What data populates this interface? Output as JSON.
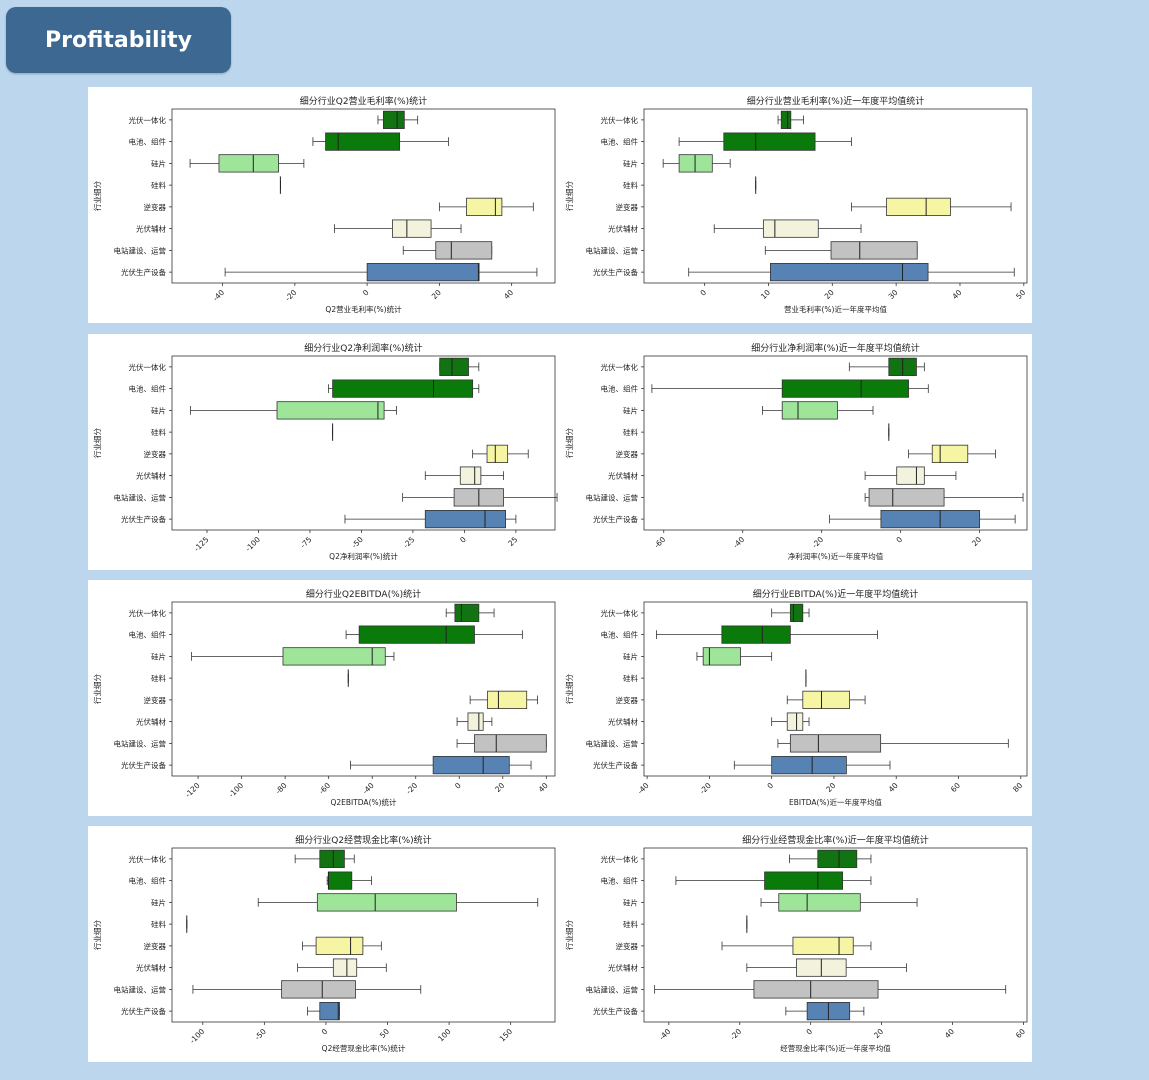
{
  "header": {
    "title": "Profitability"
  },
  "colors": {
    "光伏一体化": "#117311",
    "电池、组件": "#0a7a0a",
    "硅片": "#9ee59a",
    "硅料": "#888888",
    "逆变器": "#f5f5a4",
    "光伏辅材": "#f2f2dd",
    "电站建设、运营": "#c2c2c2",
    "光伏生产设备": "#5683b4"
  },
  "chart_data": [
    {
      "type": "box",
      "title": "细分行业Q2营业毛利率(%)统计",
      "xlabel": "Q2营业毛利率(%)统计",
      "ylabel": "行业细分",
      "categories": [
        "光伏一体化",
        "电池、组件",
        "硅片",
        "硅料",
        "逆变器",
        "光伏辅材",
        "电站建设、运营",
        "光伏生产设备"
      ],
      "xlim": [
        -54,
        52
      ],
      "ticks": [
        -40,
        -20,
        0,
        20,
        40
      ],
      "boxes": [
        {
          "min": 3,
          "q1": 4.5,
          "median": 8.3,
          "q3": 10.3,
          "max": 14
        },
        {
          "min": -15,
          "q1": -11.5,
          "median": -8,
          "q3": 9,
          "max": 22.5
        },
        {
          "min": -49,
          "q1": -41,
          "median": -31.5,
          "q3": -24.5,
          "max": -17.5
        },
        {
          "min": -24,
          "q1": -24,
          "median": -24,
          "q3": -24,
          "max": -24
        },
        {
          "min": 20,
          "q1": 27.5,
          "median": 35.5,
          "q3": 37.3,
          "max": 46
        },
        {
          "min": -9,
          "q1": 7,
          "median": 11,
          "q3": 17.7,
          "max": 26
        },
        {
          "min": 10,
          "q1": 19,
          "median": 23.3,
          "q3": 34.5,
          "max": 34.5
        },
        {
          "min": -39.3,
          "q1": 0,
          "median": 30.8,
          "q3": 31,
          "max": 47
        }
      ]
    },
    {
      "type": "box",
      "title": "细分行业营业毛利率(%)近一年度平均值统计",
      "xlabel": "营业毛利率(%)近一年度平均值",
      "ylabel": "行业细分",
      "categories": [
        "光伏一体化",
        "电池、组件",
        "硅片",
        "硅料",
        "逆变器",
        "光伏辅材",
        "电站建设、运营",
        "光伏生产设备"
      ],
      "xlim": [
        -9.5,
        50.5
      ],
      "ticks": [
        0,
        10,
        20,
        30,
        40,
        50
      ],
      "boxes": [
        {
          "min": 11.5,
          "q1": 12,
          "median": 13,
          "q3": 13.5,
          "max": 15.5
        },
        {
          "min": -4,
          "q1": 3,
          "median": 8,
          "q3": 17.3,
          "max": 23
        },
        {
          "min": -6.5,
          "q1": -4,
          "median": -1.5,
          "q3": 1.2,
          "max": 4
        },
        {
          "min": 8,
          "q1": 8,
          "median": 8,
          "q3": 8,
          "max": 8
        },
        {
          "min": 23,
          "q1": 28.5,
          "median": 34.7,
          "q3": 38.5,
          "max": 48
        },
        {
          "min": 1.5,
          "q1": 9.2,
          "median": 11,
          "q3": 17.8,
          "max": 24.5
        },
        {
          "min": 9.5,
          "q1": 19.8,
          "median": 24.3,
          "q3": 33.3,
          "max": 33.3
        },
        {
          "min": -2.5,
          "q1": 10.3,
          "median": 31,
          "q3": 35,
          "max": 48.5
        }
      ]
    },
    {
      "type": "box",
      "title": "细分行业Q2净利润率(%)统计",
      "xlabel": "Q2净利润率(%)统计",
      "ylabel": "行业细分",
      "categories": [
        "光伏一体化",
        "电池、组件",
        "硅片",
        "硅料",
        "逆变器",
        "光伏辅材",
        "电站建设、运营",
        "光伏生产设备"
      ],
      "xlim": [
        -142,
        44
      ],
      "ticks": [
        -125,
        -100,
        -75,
        -50,
        -25,
        0,
        25
      ],
      "boxes": [
        {
          "min": -12,
          "q1": -12,
          "median": -6,
          "q3": 2,
          "max": 7
        },
        {
          "min": -66,
          "q1": -64,
          "median": -15,
          "q3": 4,
          "max": 7
        },
        {
          "min": -133,
          "q1": -91,
          "median": -42,
          "q3": -39,
          "max": -33
        },
        {
          "min": -64,
          "q1": -64,
          "median": -64,
          "q3": -64,
          "max": -64
        },
        {
          "min": 4,
          "q1": 11,
          "median": 15,
          "q3": 21,
          "max": 31
        },
        {
          "min": -19,
          "q1": -2,
          "median": 5,
          "q3": 8,
          "max": 19
        },
        {
          "min": -30,
          "q1": -5,
          "median": 7,
          "q3": 19,
          "max": 45
        },
        {
          "min": -58,
          "q1": -19,
          "median": 10,
          "q3": 20,
          "max": 25
        }
      ]
    },
    {
      "type": "box",
      "title": "细分行业净利润率(%)近一年度平均值统计",
      "xlabel": "净利润率(%)近一年度平均值",
      "ylabel": "行业细分",
      "categories": [
        "光伏一体化",
        "电池、组件",
        "硅片",
        "硅料",
        "逆变器",
        "光伏辅材",
        "电站建设、运营",
        "光伏生产设备"
      ],
      "xlim": [
        -65,
        32
      ],
      "ticks": [
        -60,
        -40,
        -20,
        0,
        20
      ],
      "boxes": [
        {
          "min": -13,
          "q1": -3,
          "median": 0.5,
          "q3": 4,
          "max": 6
        },
        {
          "min": -63,
          "q1": -30,
          "median": -10,
          "q3": 2,
          "max": 7
        },
        {
          "min": -35,
          "q1": -30,
          "median": -26,
          "q3": -16,
          "max": -7
        },
        {
          "min": -3,
          "q1": -3,
          "median": -3,
          "q3": -3,
          "max": -3
        },
        {
          "min": 2,
          "q1": 8,
          "median": 10,
          "q3": 17,
          "max": 24
        },
        {
          "min": -9,
          "q1": -1,
          "median": 4,
          "q3": 6,
          "max": 14
        },
        {
          "min": -9,
          "q1": -8,
          "median": -2,
          "q3": 11,
          "max": 31
        },
        {
          "min": -18,
          "q1": -5,
          "median": 10,
          "q3": 20,
          "max": 29
        }
      ]
    },
    {
      "type": "box",
      "title": "细分行业Q2EBITDA(%)统计",
      "xlabel": "Q2EBITDA(%)统计",
      "ylabel": "行业细分",
      "categories": [
        "光伏一体化",
        "电池、组件",
        "硅片",
        "硅料",
        "逆变器",
        "光伏辅材",
        "电站建设、运营",
        "光伏生产设备"
      ],
      "xlim": [
        -132,
        44
      ],
      "ticks": [
        -120,
        -100,
        -80,
        -60,
        -40,
        -20,
        0,
        20,
        40
      ],
      "boxes": [
        {
          "min": -6,
          "q1": -2,
          "median": 1,
          "q3": 9,
          "max": 16
        },
        {
          "min": -52,
          "q1": -46,
          "median": -6,
          "q3": 7,
          "max": 29
        },
        {
          "min": -123,
          "q1": -81,
          "median": -40,
          "q3": -34,
          "max": -30
        },
        {
          "min": -51,
          "q1": -51,
          "median": -51,
          "q3": -51,
          "max": -51
        },
        {
          "min": 5,
          "q1": 13,
          "median": 18,
          "q3": 31,
          "max": 36
        },
        {
          "min": -1,
          "q1": 4,
          "median": 9,
          "q3": 11,
          "max": 15
        },
        {
          "min": -1,
          "q1": 7,
          "median": 17,
          "q3": 40,
          "max": 40
        },
        {
          "min": -50,
          "q1": -12,
          "median": 11,
          "q3": 23,
          "max": 33
        }
      ]
    },
    {
      "type": "box",
      "title": "细分行业EBITDA(%)近一年度平均值统计",
      "xlabel": "EBITDA(%)近一年度平均值",
      "ylabel": "行业细分",
      "categories": [
        "光伏一体化",
        "电池、组件",
        "硅片",
        "硅料",
        "逆变器",
        "光伏辅材",
        "电站建设、运营",
        "光伏生产设备"
      ],
      "xlim": [
        -41,
        82
      ],
      "ticks": [
        -40,
        -20,
        0,
        20,
        40,
        60,
        80
      ],
      "boxes": [
        {
          "min": 0,
          "q1": 6,
          "median": 7,
          "q3": 10,
          "max": 12
        },
        {
          "min": -37,
          "q1": -16,
          "median": -3,
          "q3": 6,
          "max": 34
        },
        {
          "min": -24,
          "q1": -22,
          "median": -20,
          "q3": -10,
          "max": 0
        },
        {
          "min": 11,
          "q1": 11,
          "median": 11,
          "q3": 11,
          "max": 11
        },
        {
          "min": 5,
          "q1": 10,
          "median": 16,
          "q3": 25,
          "max": 30
        },
        {
          "min": 0,
          "q1": 5,
          "median": 8,
          "q3": 10,
          "max": 12
        },
        {
          "min": 2,
          "q1": 6,
          "median": 15,
          "q3": 35,
          "max": 76
        },
        {
          "min": -12,
          "q1": 0,
          "median": 13,
          "q3": 24,
          "max": 38
        }
      ]
    },
    {
      "type": "box",
      "title": "细分行业Q2经营现金比率(%)统计",
      "xlabel": "Q2经营现金比率(%)统计",
      "ylabel": "行业细分",
      "categories": [
        "光伏一体化",
        "电池、组件",
        "硅片",
        "硅料",
        "逆变器",
        "光伏辅材",
        "电站建设、运营",
        "光伏生产设备"
      ],
      "xlim": [
        -125,
        186
      ],
      "ticks": [
        -100,
        -50,
        0,
        50,
        100,
        150
      ],
      "boxes": [
        {
          "min": -25,
          "q1": -5,
          "median": 6,
          "q3": 15,
          "max": 23
        },
        {
          "min": 1,
          "q1": 2,
          "median": 2,
          "q3": 21,
          "max": 37
        },
        {
          "min": -55,
          "q1": -7,
          "median": 40,
          "q3": 106,
          "max": 172
        },
        {
          "min": -113,
          "q1": -113,
          "median": -113,
          "q3": -113,
          "max": -113
        },
        {
          "min": -19,
          "q1": -8,
          "median": 20,
          "q3": 30,
          "max": 45
        },
        {
          "min": -23,
          "q1": 6,
          "median": 17,
          "q3": 25,
          "max": 49
        },
        {
          "min": -108,
          "q1": -36,
          "median": -3,
          "q3": 24,
          "max": 77
        },
        {
          "min": -15,
          "q1": -5,
          "median": 10,
          "q3": 11,
          "max": 11
        }
      ]
    },
    {
      "type": "box",
      "title": "细分行业经营现金比率(%)近一年度平均值统计",
      "xlabel": "经营现金比率(%)近一年度平均值",
      "ylabel": "行业细分",
      "categories": [
        "光伏一体化",
        "电池、组件",
        "硅片",
        "硅料",
        "逆变器",
        "光伏辅材",
        "电站建设、运营",
        "光伏生产设备"
      ],
      "xlim": [
        -47,
        61
      ],
      "ticks": [
        -40,
        -20,
        0,
        20,
        40,
        60
      ],
      "boxes": [
        {
          "min": -6,
          "q1": 2,
          "median": 8,
          "q3": 13,
          "max": 17
        },
        {
          "min": -38,
          "q1": -13,
          "median": 2,
          "q3": 9,
          "max": 17
        },
        {
          "min": -14,
          "q1": -9,
          "median": -1,
          "q3": 14,
          "max": 30
        },
        {
          "min": -18,
          "q1": -18,
          "median": -18,
          "q3": -18,
          "max": -18
        },
        {
          "min": -25,
          "q1": -5,
          "median": 8,
          "q3": 12,
          "max": 17
        },
        {
          "min": -18,
          "q1": -4,
          "median": 3,
          "q3": 10,
          "max": 27
        },
        {
          "min": -44,
          "q1": -16,
          "median": 0,
          "q3": 19,
          "max": 55
        },
        {
          "min": -7,
          "q1": -1,
          "median": 5,
          "q3": 11,
          "max": 15
        }
      ]
    }
  ]
}
